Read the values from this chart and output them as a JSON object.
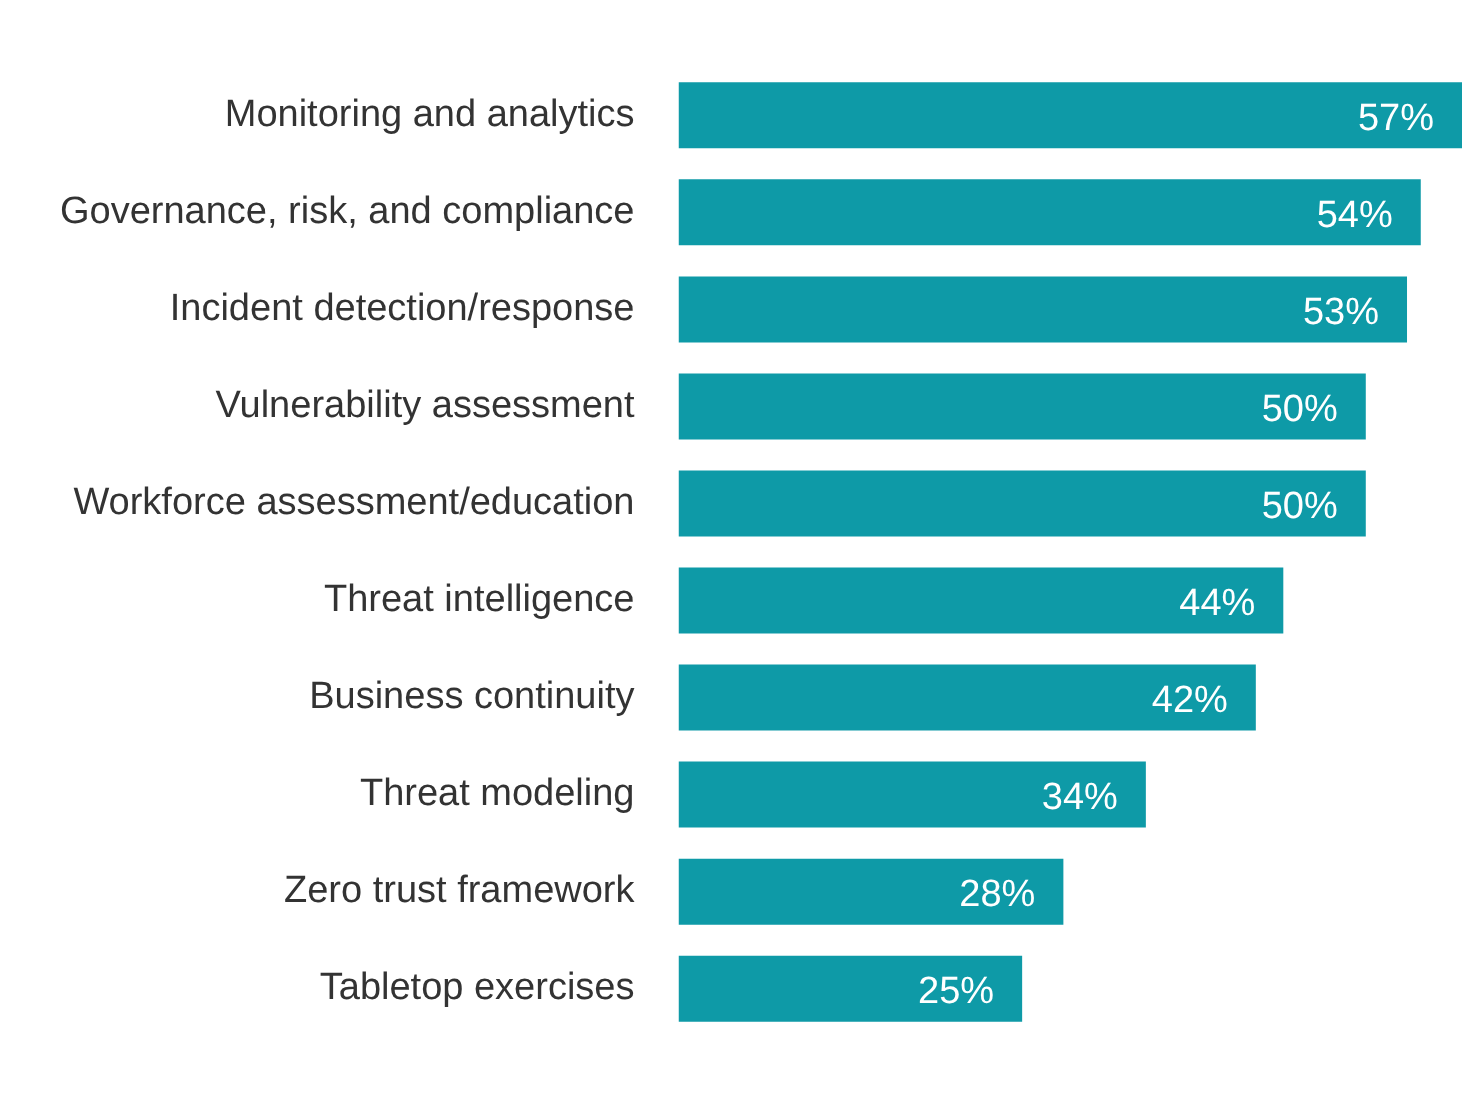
{
  "chart_data": {
    "type": "bar",
    "orientation": "horizontal",
    "categories": [
      "Monitoring and analytics",
      "Governance, risk, and compliance",
      "Incident detection/response",
      "Vulnerability assessment",
      "Workforce assessment/education",
      "Threat intelligence",
      "Business continuity",
      "Threat modeling",
      "Zero trust framework",
      "Tabletop exercises"
    ],
    "values": [
      57,
      54,
      53,
      50,
      50,
      44,
      42,
      34,
      28,
      25
    ],
    "value_labels": [
      "57%",
      "54%",
      "53%",
      "50%",
      "50%",
      "44%",
      "42%",
      "34%",
      "28%",
      "25%"
    ],
    "color": "#0e9aa7",
    "xlim": [
      0,
      57
    ],
    "tick_labels": "y"
  }
}
